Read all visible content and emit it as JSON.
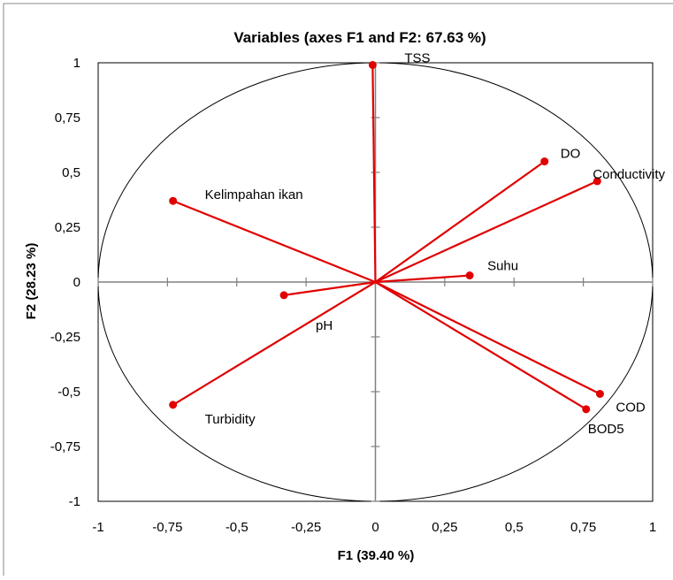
{
  "chart_data": {
    "type": "scatter",
    "title": "Variables (axes F1 and F2: 67.63 %)",
    "xlabel": "F1 (39.40 %)",
    "ylabel": "F2 (28.23 %)",
    "xlim": [
      -1,
      1
    ],
    "ylim": [
      -1,
      1
    ],
    "x_ticks": [
      -1,
      -0.75,
      -0.5,
      -0.25,
      0,
      0.25,
      0.5,
      0.75,
      1
    ],
    "y_ticks": [
      -1,
      -0.75,
      -0.5,
      -0.25,
      0,
      0.25,
      0.5,
      0.75,
      1
    ],
    "x_tick_labels": [
      "-1",
      "-0,75",
      "-0,5",
      "-0,25",
      "0",
      "0,25",
      "0,5",
      "0,75",
      "1"
    ],
    "y_tick_labels": [
      "-1",
      "-0,75",
      "-0,5",
      "-0,25",
      "0",
      "0,25",
      "0,5",
      "0,75",
      "1"
    ],
    "correlation_circle": true,
    "grid": false,
    "vector_color": "#e00000",
    "points": [
      {
        "label": "TSS",
        "x": -0.01,
        "y": 0.99
      },
      {
        "label": "DO",
        "x": 0.61,
        "y": 0.55
      },
      {
        "label": "Conductivity",
        "x": 0.8,
        "y": 0.46
      },
      {
        "label": "Kelimpahan ikan",
        "x": -0.73,
        "y": 0.37
      },
      {
        "label": "Suhu",
        "x": 0.34,
        "y": 0.03
      },
      {
        "label": "pH",
        "x": -0.33,
        "y": -0.06
      },
      {
        "label": "Turbidity",
        "x": -0.73,
        "y": -0.56
      },
      {
        "label": "COD",
        "x": 0.81,
        "y": -0.51
      },
      {
        "label": "BOD5",
        "x": 0.76,
        "y": -0.58
      }
    ]
  }
}
